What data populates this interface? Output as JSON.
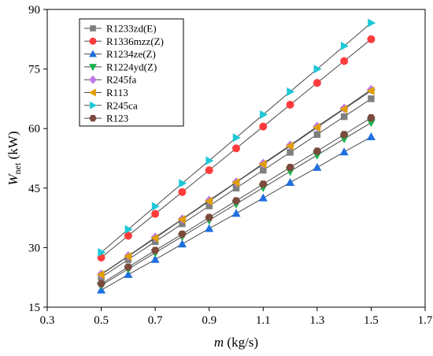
{
  "chart_data": {
    "type": "line",
    "xlabel": {
      "main": "m",
      "unit": " (kg/s)"
    },
    "ylabel": {
      "main": "W",
      "sub": "net",
      "unit": " (kW)"
    },
    "xlim": [
      0.3,
      1.7
    ],
    "ylim": [
      15,
      90
    ],
    "xticks": [
      "0.3",
      "0.5",
      "0.7",
      "0.9",
      "1.1",
      "1.3",
      "1.5",
      "1.7"
    ],
    "yticks": [
      "15",
      "30",
      "45",
      "60",
      "75",
      "90"
    ],
    "grid": false,
    "legend_position": "top-left",
    "x": [
      0.5,
      0.6,
      0.7,
      0.8,
      0.9,
      1.0,
      1.1,
      1.2,
      1.3,
      1.4,
      1.5
    ],
    "series": [
      {
        "name": "R1233zd(E)",
        "marker": "square",
        "color": "#7f7f7f",
        "values": [
          22.5,
          27.0,
          31.5,
          36.0,
          40.5,
          45.0,
          49.5,
          54.0,
          58.5,
          63.0,
          67.5
        ]
      },
      {
        "name": "R1336mzz(Z)",
        "marker": "circle",
        "color": "#ff3c3c",
        "values": [
          27.5,
          33.0,
          38.5,
          44.0,
          49.5,
          55.0,
          60.5,
          66.0,
          71.5,
          77.0,
          82.5
        ]
      },
      {
        "name": "R1234ze(Z)",
        "marker": "triangle-up",
        "color": "#1f6fe0",
        "values": [
          19.3,
          23.2,
          27.0,
          30.9,
          34.8,
          38.6,
          42.5,
          46.4,
          50.2,
          54.1,
          57.9
        ]
      },
      {
        "name": "R1224yd(Z)",
        "marker": "triangle-down",
        "color": "#1ab04a",
        "values": [
          20.5,
          24.6,
          28.7,
          32.8,
          36.9,
          41.0,
          45.1,
          49.2,
          53.3,
          57.4,
          61.5
        ]
      },
      {
        "name": "R245fa",
        "marker": "diamond",
        "color": "#c079e6",
        "values": [
          23.3,
          27.9,
          32.6,
          37.2,
          41.9,
          46.5,
          51.2,
          55.8,
          60.5,
          65.1,
          69.8
        ]
      },
      {
        "name": "R113",
        "marker": "triangle-left",
        "color": "#e0a000",
        "values": [
          23.2,
          27.8,
          32.4,
          37.1,
          41.7,
          46.4,
          51.0,
          55.6,
          60.3,
          64.9,
          69.5
        ]
      },
      {
        "name": "R245ca",
        "marker": "triangle-right",
        "color": "#1ec8d8",
        "values": [
          28.8,
          34.6,
          40.4,
          46.2,
          51.9,
          57.7,
          63.5,
          69.3,
          75.0,
          80.8,
          86.6
        ]
      },
      {
        "name": "R123",
        "marker": "hexagon",
        "color": "#7b4a3c",
        "values": [
          20.9,
          25.1,
          29.3,
          33.4,
          37.6,
          41.8,
          46.0,
          50.2,
          54.3,
          58.5,
          62.7
        ]
      }
    ]
  }
}
